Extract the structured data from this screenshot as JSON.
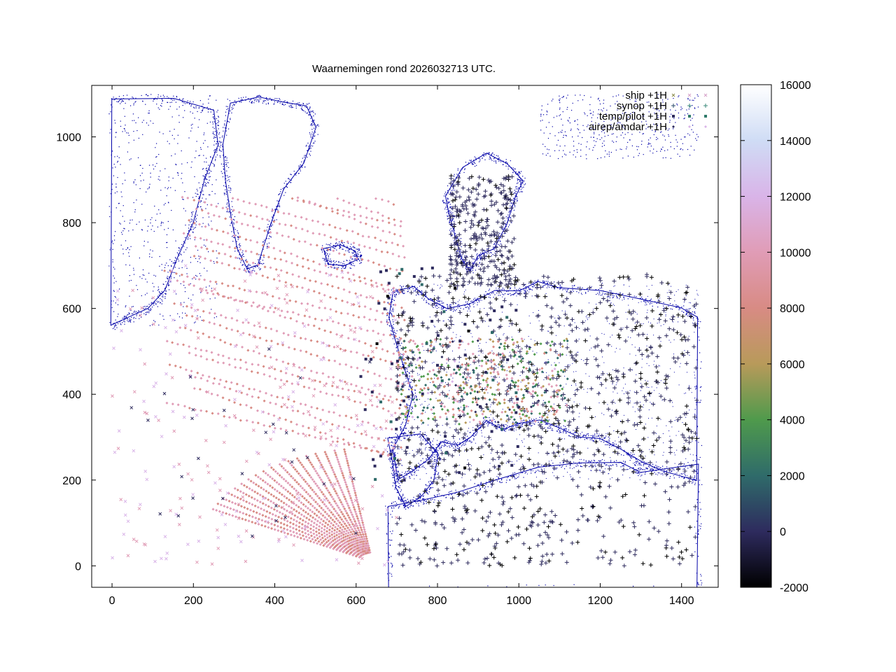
{
  "chart_data": {
    "type": "scatter",
    "title": "Waarnemingen rond 2026032713 UTC.",
    "xlabel": "",
    "ylabel": "",
    "xlim": [
      -50,
      1490
    ],
    "ylim": [
      -50,
      1120
    ],
    "x_ticks": [
      0,
      200,
      400,
      600,
      800,
      1000,
      1200,
      1400
    ],
    "y_ticks": [
      0,
      200,
      400,
      600,
      800,
      1000
    ],
    "grid": false,
    "legend_position": "top-right",
    "series": [
      {
        "name": "ship +1H",
        "marker": "x"
      },
      {
        "name": "synop +1H",
        "marker": "+"
      },
      {
        "name": "temp/pilot +1H",
        "marker": "square"
      },
      {
        "name": "airep/amdar +1H",
        "marker": "dot"
      }
    ],
    "colorbar": {
      "min": -2000,
      "max": 16000,
      "ticks": [
        -2000,
        0,
        2000,
        4000,
        6000,
        8000,
        10000,
        12000,
        14000,
        16000
      ],
      "tick_labels": [
        "-2000",
        "0",
        "2000",
        "4000",
        "6000",
        "8000",
        "10000",
        "12000",
        "14000",
        "16000"
      ],
      "stops": [
        "#000000",
        "#2e2b5e",
        "#2f6b6a",
        "#4f9a4c",
        "#b89a5a",
        "#d88b84",
        "#e09cb6",
        "#d9b4e8",
        "#cfdcf5",
        "#ffffff"
      ]
    },
    "coastline_color": "#0000a8"
  }
}
